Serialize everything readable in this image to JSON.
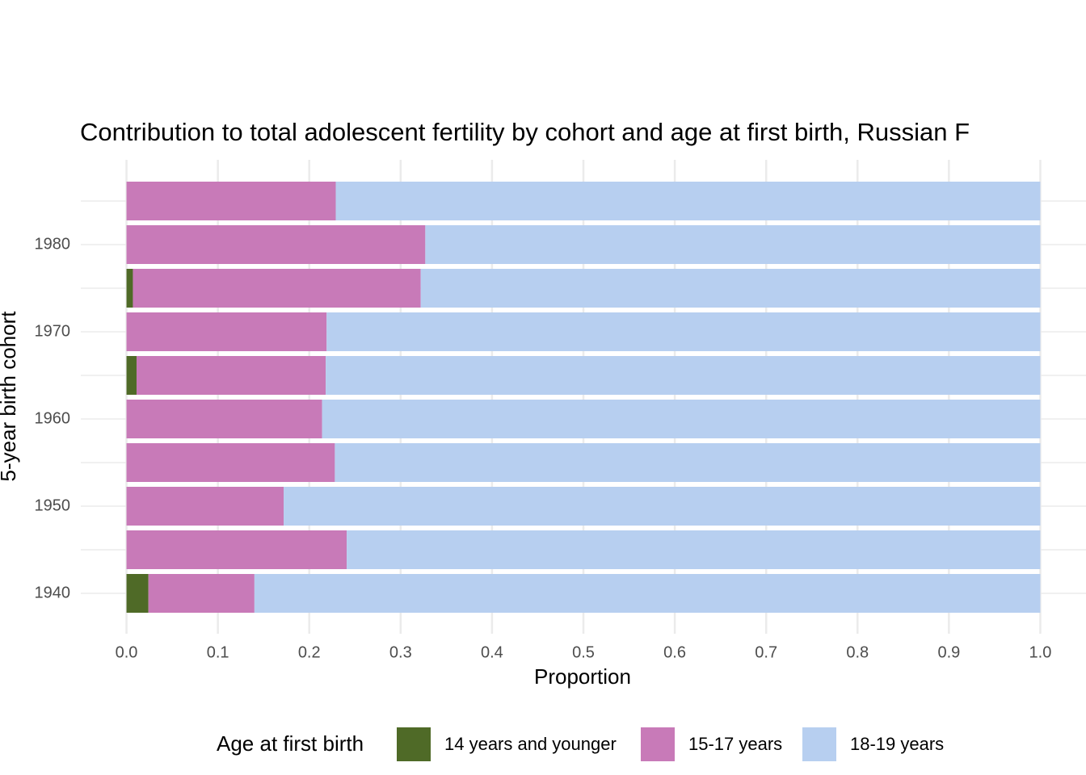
{
  "chart_data": {
    "type": "stacked-bar-horizontal",
    "title": "Contribution to total adolescent fertility by cohort and age at first birth,  Russian F",
    "x_label": "Proportion",
    "y_label": "5-year birth cohort",
    "legend_title": "Age at first birth",
    "categories": [
      "1940",
      null,
      "1950",
      null,
      "1960",
      null,
      "1970",
      null,
      "1980",
      null
    ],
    "series": [
      {
        "name": "14 years and younger",
        "color": "#4f6a27",
        "values": [
          0.024,
          0,
          0,
          0,
          0,
          0.011,
          0,
          0.007,
          0,
          0
        ]
      },
      {
        "name": "15-17 years",
        "color": "#c87ab8",
        "values": [
          0.116,
          0.241,
          0.172,
          0.228,
          0.214,
          0.207,
          0.219,
          0.315,
          0.327,
          0.229
        ]
      },
      {
        "name": "18-19 years",
        "color": "#b7cff0",
        "values": [
          0.86,
          0.759,
          0.828,
          0.772,
          0.786,
          0.782,
          0.781,
          0.678,
          0.673,
          0.771
        ]
      }
    ],
    "xlim": [
      -0.05,
      1.05
    ],
    "xticks": [
      {
        "value": 0,
        "label": "0.0"
      },
      0.1,
      0.2,
      0.3,
      0.4,
      0.5,
      0.6,
      0.7,
      0.8,
      0.9,
      {
        "value": 1,
        "label": "1.0"
      }
    ],
    "grid": true,
    "legend_position": "bottom"
  }
}
